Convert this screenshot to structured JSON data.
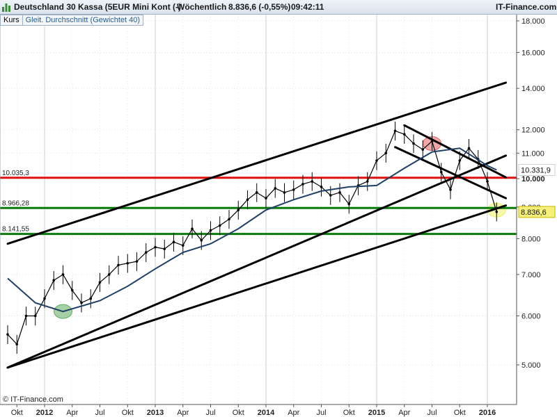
{
  "header": {
    "instrument": "Deutschland 30 Kassa (5EUR Mini Kont (-)",
    "period": "Wöchentlich",
    "quote": "8.836,6 (-0,55%)",
    "time": "09:42:11",
    "source": "IT-Finance.com",
    "logo_icon": "bar-chart-icon"
  },
  "legend": {
    "series1": "Kurs",
    "series2": "Gleit. Durchschnitt (Gewichtet 40)"
  },
  "footer": {
    "copyright": "© IT-Finance.com"
  },
  "colors": {
    "candles": "#000000",
    "moving_average": "#1f3f66",
    "resistance": "#e01010",
    "support": "#0a7a0a",
    "trendlines": "#000000"
  },
  "chart_data": {
    "type": "line",
    "y_scale": "log",
    "ylim": [
      4900,
      18500
    ],
    "xlim": [
      "2011-09",
      "2016-03"
    ],
    "y_ticks": [
      {
        "value": 18000,
        "label": "18.000"
      },
      {
        "value": 16000,
        "label": "16.000"
      },
      {
        "value": 14000,
        "label": "14.000"
      },
      {
        "value": 12000,
        "label": "12.000"
      },
      {
        "value": 11000,
        "label": "11.000"
      },
      {
        "value": 10000,
        "label": "10.000"
      },
      {
        "value": 9000,
        "label": "9.000"
      },
      {
        "value": 8000,
        "label": "8.000"
      },
      {
        "value": 7000,
        "label": "7.000"
      },
      {
        "value": 6000,
        "label": "6.000"
      },
      {
        "value": 5000,
        "label": "5.000"
      }
    ],
    "x_ticks": [
      {
        "date": "2011-10",
        "label": "Okt"
      },
      {
        "date": "2012-01",
        "label": "2012"
      },
      {
        "date": "2012-04",
        "label": "Apr"
      },
      {
        "date": "2012-07",
        "label": "Jul"
      },
      {
        "date": "2012-10",
        "label": "Okt"
      },
      {
        "date": "2013-01",
        "label": "2013"
      },
      {
        "date": "2013-04",
        "label": "Apr"
      },
      {
        "date": "2013-07",
        "label": "Jul"
      },
      {
        "date": "2013-10",
        "label": "Okt"
      },
      {
        "date": "2014-01",
        "label": "2014"
      },
      {
        "date": "2014-04",
        "label": "Apr"
      },
      {
        "date": "2014-07",
        "label": "Jul"
      },
      {
        "date": "2014-10",
        "label": "Okt"
      },
      {
        "date": "2015-01",
        "label": "2015"
      },
      {
        "date": "2015-04",
        "label": "Apr"
      },
      {
        "date": "2015-07",
        "label": "Jul"
      },
      {
        "date": "2015-10",
        "label": "Okt"
      },
      {
        "date": "2016-01",
        "label": "2016"
      }
    ],
    "series": [
      {
        "name": "Kurs",
        "x": [
          "2011-09",
          "2011-10",
          "2011-11",
          "2011-12",
          "2012-01",
          "2012-02",
          "2012-03",
          "2012-04",
          "2012-05",
          "2012-06",
          "2012-07",
          "2012-08",
          "2012-09",
          "2012-10",
          "2012-11",
          "2012-12",
          "2013-01",
          "2013-02",
          "2013-03",
          "2013-04",
          "2013-05",
          "2013-06",
          "2013-07",
          "2013-08",
          "2013-09",
          "2013-10",
          "2013-11",
          "2013-12",
          "2014-01",
          "2014-02",
          "2014-03",
          "2014-04",
          "2014-05",
          "2014-06",
          "2014-07",
          "2014-08",
          "2014-09",
          "2014-10",
          "2014-11",
          "2014-12",
          "2015-01",
          "2015-02",
          "2015-03",
          "2015-04",
          "2015-05",
          "2015-06",
          "2015-07",
          "2015-08",
          "2015-09",
          "2015-10",
          "2015-11",
          "2015-12",
          "2016-01",
          "2016-02"
        ],
        "y": [
          5600,
          5400,
          6000,
          6000,
          6400,
          6850,
          7000,
          6600,
          6300,
          6400,
          6800,
          7000,
          7250,
          7300,
          7350,
          7600,
          7750,
          7700,
          7900,
          7800,
          8300,
          7950,
          8250,
          8400,
          8600,
          8900,
          9250,
          9500,
          9300,
          9650,
          9500,
          9600,
          9800,
          9900,
          9700,
          9400,
          9500,
          9100,
          9750,
          9900,
          10700,
          11000,
          11950,
          11800,
          11400,
          11150,
          11500,
          10250,
          9600,
          10700,
          11200,
          10750,
          9900,
          8840
        ]
      },
      {
        "name": "Gleit. Durchschnitt (Gewichtet 40)",
        "x": [
          "2011-09",
          "2011-12",
          "2012-03",
          "2012-07",
          "2012-10",
          "2013-01",
          "2013-04",
          "2013-07",
          "2013-10",
          "2014-01",
          "2014-04",
          "2014-07",
          "2014-10",
          "2015-01",
          "2015-04",
          "2015-07",
          "2015-10",
          "2016-01",
          "2016-02"
        ],
        "y": [
          6900,
          6300,
          6100,
          6350,
          6700,
          7150,
          7600,
          7850,
          8300,
          8900,
          9250,
          9550,
          9700,
          9750,
          10400,
          11050,
          11200,
          10500,
          10331.9
        ]
      }
    ],
    "horizontal_lines": [
      {
        "value": 10035.3,
        "label": "10.035,3",
        "color": "#e01010"
      },
      {
        "value": 8966.28,
        "label": "8.966,28",
        "color": "#0a7a0a"
      },
      {
        "value": 8141.55,
        "label": "8.141,55",
        "color": "#0a7a0a"
      }
    ],
    "trendlines": [
      {
        "from": {
          "date": "2011-09",
          "value": 7850
        },
        "to": {
          "date": "2016-03",
          "value": 14300
        }
      },
      {
        "from": {
          "date": "2011-09",
          "value": 4950
        },
        "to": {
          "date": "2016-03",
          "value": 10900
        }
      },
      {
        "from": {
          "date": "2011-09",
          "value": 4950
        },
        "to": {
          "date": "2016-03",
          "value": 9050
        }
      },
      {
        "from": {
          "date": "2015-04",
          "value": 12200
        },
        "to": {
          "date": "2016-03",
          "value": 10050
        }
      },
      {
        "from": {
          "date": "2015-03",
          "value": 11250
        },
        "to": {
          "date": "2016-03",
          "value": 9300
        }
      }
    ],
    "price_labels": [
      {
        "value": 10331.9,
        "label": "10.331,9",
        "series": "Gleit. Durchschnitt (Gewichtet 40)"
      },
      {
        "value": 8836.6,
        "label": "8.836,6",
        "series": "Kurs"
      }
    ],
    "highlights": [
      {
        "date": "2012-03",
        "value": 6100,
        "color": "#5caa5c"
      },
      {
        "date": "2015-07",
        "value": 11400,
        "color": "#e06060"
      },
      {
        "date": "2016-02",
        "value": 8900,
        "color": "#f0f06a"
      }
    ],
    "grid": true
  }
}
